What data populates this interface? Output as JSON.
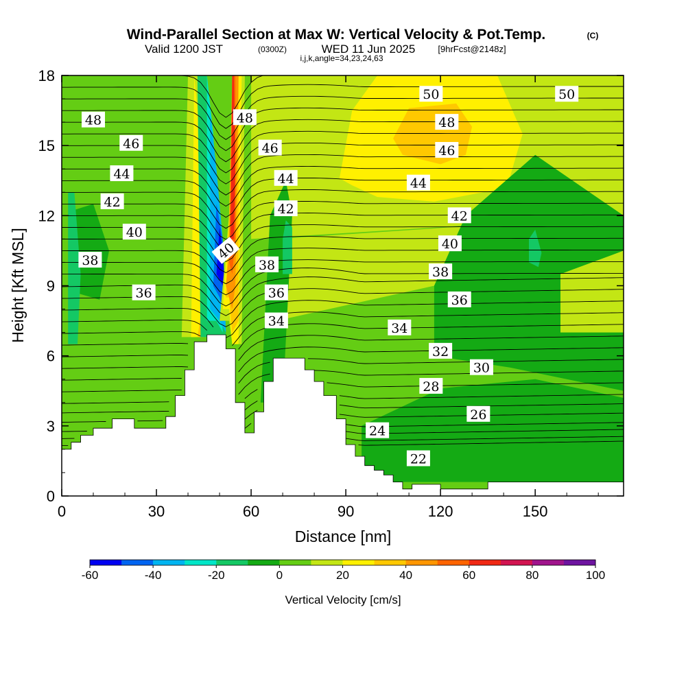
{
  "title": {
    "main": "Wind-Parallel Section at Max W: Vertical Velocity & Pot.Temp.",
    "copyright": "(C)",
    "valid_prefix": "Valid 1200 JST",
    "valid_utc": "(0300Z)",
    "valid_date": "WED 11 Jun 2025",
    "forecast": "[9hrFcst@2148z]",
    "indices": "i,j,k,angle=34,23,24,63"
  },
  "chart_data": {
    "type": "heatmap",
    "xlabel": "Distance [nm]",
    "ylabel": "Height [Kft MSL]",
    "xlim": [
      0,
      178
    ],
    "ylim": [
      0,
      18
    ],
    "x_ticks": [
      0,
      30,
      60,
      90,
      120,
      150
    ],
    "y_ticks": [
      0,
      3,
      6,
      9,
      12,
      15,
      18
    ],
    "colorbar": {
      "label": "Vertical Velocity [cm/s]",
      "levels": [
        -60,
        -50,
        -40,
        -30,
        -20,
        -10,
        0,
        10,
        20,
        30,
        40,
        50,
        60,
        70,
        80,
        90,
        100
      ],
      "tick_labels": [
        "-60",
        "-40",
        "-20",
        "0",
        "20",
        "40",
        "60",
        "80",
        "100"
      ],
      "colors": [
        "#0000f0",
        "#0064f0",
        "#00b4f0",
        "#00e6c8",
        "#14c864",
        "#14aa14",
        "#64cd14",
        "#c3e614",
        "#fff000",
        "#ffc800",
        "#ff9600",
        "#ff6400",
        "#f02814",
        "#d21450",
        "#a0148c",
        "#6e14a0"
      ]
    },
    "terrain": {
      "x": [
        0,
        3,
        3,
        6,
        6,
        10,
        10,
        16,
        16,
        23,
        23,
        33,
        33,
        36,
        36,
        39,
        39,
        42,
        42,
        46,
        46,
        52,
        52,
        55,
        55,
        58,
        58,
        61,
        61,
        64,
        64,
        67,
        67,
        77,
        77,
        80,
        80,
        83,
        83,
        87,
        87,
        90,
        90,
        93,
        93,
        96,
        96,
        99,
        99,
        102,
        102,
        105,
        105,
        108,
        108,
        111,
        111,
        120,
        120,
        135,
        135,
        150,
        150,
        178
      ],
      "y": [
        2.0,
        2.0,
        2.3,
        2.3,
        2.6,
        2.6,
        2.9,
        2.9,
        3.3,
        3.3,
        2.9,
        2.9,
        3.4,
        3.4,
        4.3,
        4.3,
        5.4,
        5.4,
        6.6,
        6.6,
        6.9,
        6.9,
        6.3,
        6.3,
        4.0,
        4.0,
        2.7,
        2.7,
        3.6,
        3.6,
        4.9,
        4.9,
        5.9,
        5.9,
        5.4,
        5.4,
        4.9,
        4.9,
        4.3,
        4.3,
        3.3,
        3.3,
        2.2,
        2.2,
        1.7,
        1.7,
        1.3,
        1.3,
        1.1,
        1.1,
        0.9,
        0.9,
        0.6,
        0.6,
        0.3,
        0.3,
        0.5,
        0.5,
        0.3,
        0.3,
        0.6,
        0.6,
        0.6,
        0.6
      ]
    },
    "field_regions": [
      {
        "value": 5,
        "x": [
          0,
          178,
          178,
          0
        ],
        "y": [
          0,
          0,
          18,
          18
        ]
      },
      {
        "value": 15,
        "x": [
          60,
          178,
          178,
          60
        ],
        "y": [
          11,
          12,
          18,
          18
        ]
      },
      {
        "value": 15,
        "x": [
          68,
          178,
          178,
          68
        ],
        "y": [
          7.5,
          10.8,
          12,
          11
        ]
      },
      {
        "value": 25,
        "x": [
          88,
          92,
          100,
          115,
          138,
          146,
          141,
          118,
          100,
          92
        ],
        "y": [
          13.6,
          16.5,
          18,
          18,
          18,
          15.5,
          13.2,
          12.6,
          12.8,
          13.3
        ]
      },
      {
        "value": 35,
        "x": [
          105,
          110,
          125,
          130,
          128,
          120,
          108
        ],
        "y": [
          15.3,
          16.6,
          16.8,
          15.8,
          14.6,
          14.2,
          14.6
        ]
      },
      {
        "value": -5,
        "x": [
          2,
          12,
          15,
          10,
          3
        ],
        "y": [
          8.8,
          8.4,
          10.5,
          12.5,
          12.2
        ]
      },
      {
        "value": -15,
        "x": [
          2,
          5,
          6,
          4,
          2
        ],
        "y": [
          6.5,
          6.5,
          9.5,
          13.0,
          13.0
        ]
      },
      {
        "value": -5,
        "x": [
          118,
          142,
          178,
          178,
          150,
          128,
          118
        ],
        "y": [
          6.0,
          5.5,
          4.5,
          12.0,
          14.6,
          12.0,
          9.0
        ]
      },
      {
        "value": -5,
        "x": [
          95,
          120,
          150,
          178,
          178,
          150,
          120,
          95
        ],
        "y": [
          0.6,
          0.6,
          0.6,
          0.6,
          4.2,
          5.0,
          4.6,
          3.0
        ]
      },
      {
        "value": -5,
        "x": [
          63,
          70,
          73,
          71,
          66
        ],
        "y": [
          4.0,
          4.0,
          12.0,
          13.5,
          12.0
        ]
      },
      {
        "value": -15,
        "x": [
          148,
          151,
          152,
          150,
          148
        ],
        "y": [
          10.0,
          9.8,
          10.4,
          11.4,
          11.0
        ]
      },
      {
        "value": -15,
        "x": [
          70,
          73,
          73,
          71,
          70
        ],
        "y": [
          9.5,
          9.5,
          11.5,
          11.8,
          11.0
        ]
      },
      {
        "value": 15,
        "x": [
          158,
          178,
          178,
          158
        ],
        "y": [
          7.0,
          7.0,
          10.5,
          9.5
        ]
      },
      {
        "value": 15,
        "x": [
          38,
          45,
          48,
          44,
          40
        ],
        "y": [
          6.8,
          6.8,
          12.0,
          18.0,
          18.0
        ]
      },
      {
        "value": 25,
        "x": [
          41,
          45,
          47,
          44,
          42
        ],
        "y": [
          6.8,
          6.8,
          10.0,
          15.0,
          18.0
        ]
      },
      {
        "value": 35,
        "x": [
          43,
          46,
          47,
          45
        ],
        "y": [
          6.8,
          6.8,
          7.5,
          8.5
        ]
      },
      {
        "value": -15,
        "x": [
          44,
          48,
          52,
          50,
          46,
          43
        ],
        "y": [
          6.8,
          6.8,
          6.9,
          12.0,
          18.0,
          18.0
        ]
      },
      {
        "value": -25,
        "x": [
          46,
          49,
          51,
          50,
          48,
          46
        ],
        "y": [
          7.5,
          7.5,
          7.0,
          11.0,
          15.5,
          18.0
        ]
      },
      {
        "value": -35,
        "x": [
          47,
          50,
          52,
          51,
          49,
          47
        ],
        "y": [
          8.0,
          7.5,
          7.0,
          11.0,
          14.0,
          16.5
        ]
      },
      {
        "value": -45,
        "x": [
          48,
          50,
          52,
          51,
          49
        ],
        "y": [
          9.0,
          8.5,
          7.5,
          11.0,
          12.5
        ]
      },
      {
        "value": -55,
        "x": [
          49,
          51,
          52,
          51,
          50
        ],
        "y": [
          9.5,
          9.0,
          8.0,
          10.5,
          11.5
        ]
      },
      {
        "value": 15,
        "x": [
          50,
          53,
          54,
          57,
          58,
          55,
          53
        ],
        "y": [
          7.5,
          7.5,
          6.5,
          6.5,
          18.0,
          18.0,
          12.0
        ]
      },
      {
        "value": 25,
        "x": [
          51,
          53,
          54,
          56,
          57,
          55,
          53
        ],
        "y": [
          8.0,
          8.0,
          6.5,
          6.5,
          18.0,
          18.0,
          12.0
        ]
      },
      {
        "value": 35,
        "x": [
          52,
          53,
          54,
          56,
          56,
          54,
          53
        ],
        "y": [
          8.5,
          8.5,
          7.0,
          7.5,
          18.0,
          18.0,
          12.0
        ]
      },
      {
        "value": 45,
        "x": [
          52,
          54,
          55,
          56,
          55,
          54
        ],
        "y": [
          9.0,
          8.0,
          9.0,
          18.0,
          18.0,
          12.0
        ]
      },
      {
        "value": 55,
        "x": [
          53,
          54,
          55,
          55,
          54
        ],
        "y": [
          10.0,
          9.5,
          11.0,
          18.0,
          18.0
        ]
      },
      {
        "value": 65,
        "x": [
          53.5,
          54.5,
          55,
          54.5,
          54
        ],
        "y": [
          11.0,
          11.0,
          14.0,
          18.0,
          18.0
        ]
      }
    ],
    "theta_contours": {
      "base_y": [
        2.0,
        2.2,
        2.5,
        2.8,
        3.2,
        3.6,
        4.0,
        4.5,
        5.0,
        5.5,
        6.0,
        6.5,
        7.0,
        7.5,
        8.0,
        8.5,
        9.0,
        9.5,
        10.0,
        10.5,
        11.0,
        11.5,
        12.0,
        12.5,
        13.0,
        13.5,
        14.0,
        14.5,
        15.0,
        15.5,
        16.0,
        16.5,
        17.0,
        17.5,
        18.0
      ],
      "label_values": [
        22,
        24,
        26,
        28,
        30,
        32,
        34,
        36,
        38,
        40,
        42,
        44,
        46,
        48,
        50
      ]
    },
    "contour_labels": [
      {
        "text": "50",
        "x": 117,
        "y": 17.2
      },
      {
        "text": "50",
        "x": 160,
        "y": 17.2
      },
      {
        "text": "48",
        "x": 10,
        "y": 16.1
      },
      {
        "text": "48",
        "x": 58,
        "y": 16.2
      },
      {
        "text": "48",
        "x": 122,
        "y": 16.0
      },
      {
        "text": "46",
        "x": 22,
        "y": 15.1
      },
      {
        "text": "46",
        "x": 66,
        "y": 14.9
      },
      {
        "text": "46",
        "x": 122,
        "y": 14.8
      },
      {
        "text": "44",
        "x": 19,
        "y": 13.8
      },
      {
        "text": "44",
        "x": 71,
        "y": 13.6
      },
      {
        "text": "44",
        "x": 113,
        "y": 13.4
      },
      {
        "text": "42",
        "x": 16,
        "y": 12.6
      },
      {
        "text": "42",
        "x": 71,
        "y": 12.3
      },
      {
        "text": "42",
        "x": 126,
        "y": 12.0
      },
      {
        "text": "40",
        "x": 23,
        "y": 11.3
      },
      {
        "text": "40",
        "x": 52,
        "y": 10.5
      },
      {
        "text": "40",
        "x": 123,
        "y": 10.8
      },
      {
        "text": "38",
        "x": 9,
        "y": 10.1
      },
      {
        "text": "38",
        "x": 65,
        "y": 9.9
      },
      {
        "text": "38",
        "x": 120,
        "y": 9.6
      },
      {
        "text": "36",
        "x": 26,
        "y": 8.7
      },
      {
        "text": "36",
        "x": 68,
        "y": 8.7
      },
      {
        "text": "36",
        "x": 126,
        "y": 8.4
      },
      {
        "text": "34",
        "x": 68,
        "y": 7.5
      },
      {
        "text": "34",
        "x": 107,
        "y": 7.2
      },
      {
        "text": "32",
        "x": 120,
        "y": 6.2
      },
      {
        "text": "30",
        "x": 133,
        "y": 5.5
      },
      {
        "text": "28",
        "x": 117,
        "y": 4.7
      },
      {
        "text": "26",
        "x": 132,
        "y": 3.5
      },
      {
        "text": "24",
        "x": 100,
        "y": 2.8
      },
      {
        "text": "22",
        "x": 113,
        "y": 1.6
      }
    ]
  }
}
